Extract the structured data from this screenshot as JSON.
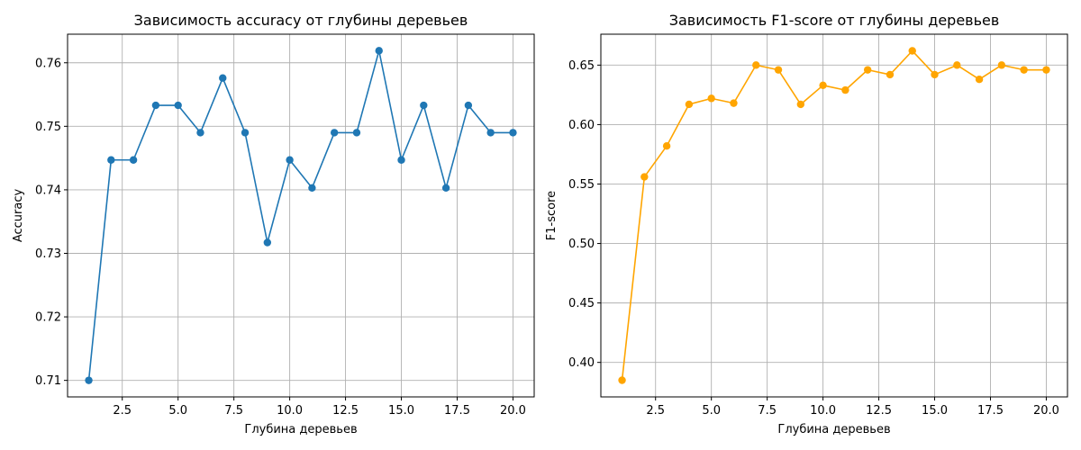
{
  "chart_data": [
    {
      "type": "line",
      "title": "Зависимость accuracy от глубины деревьев",
      "xlabel": "Глубина деревьев",
      "ylabel": "Accuracy",
      "xlim": [
        0.05,
        20.95
      ],
      "ylim": [
        0.7074,
        0.7645
      ],
      "grid": true,
      "x": [
        1,
        2,
        3,
        4,
        5,
        6,
        7,
        8,
        9,
        10,
        11,
        12,
        13,
        14,
        15,
        16,
        17,
        18,
        19,
        20
      ],
      "xticks": [
        2.5,
        5.0,
        7.5,
        10.0,
        12.5,
        15.0,
        17.5,
        20.0
      ],
      "xtick_labels": [
        "2.5",
        "5.0",
        "7.5",
        "10.0",
        "12.5",
        "15.0",
        "17.5",
        "20.0"
      ],
      "yticks": [
        0.71,
        0.72,
        0.73,
        0.74,
        0.75,
        0.76
      ],
      "ytick_labels": [
        "0.71",
        "0.72",
        "0.73",
        "0.74",
        "0.75",
        "0.76"
      ],
      "series": [
        {
          "color": "#1f77b4",
          "marker": "circle",
          "values": [
            0.71,
            0.7447,
            0.7447,
            0.7533,
            0.7533,
            0.749,
            0.7576,
            0.749,
            0.7317,
            0.7447,
            0.7403,
            0.749,
            0.749,
            0.7619,
            0.7447,
            0.7533,
            0.7403,
            0.7533,
            0.749,
            0.749
          ]
        }
      ]
    },
    {
      "type": "line",
      "title": "Зависимость F1-score от глубины деревьев",
      "xlabel": "Глубина деревьев",
      "ylabel": "F1-score",
      "xlim": [
        0.05,
        20.95
      ],
      "ylim": [
        0.371,
        0.676
      ],
      "grid": true,
      "x": [
        1,
        2,
        3,
        4,
        5,
        6,
        7,
        8,
        9,
        10,
        11,
        12,
        13,
        14,
        15,
        16,
        17,
        18,
        19,
        20
      ],
      "xticks": [
        2.5,
        5.0,
        7.5,
        10.0,
        12.5,
        15.0,
        17.5,
        20.0
      ],
      "xtick_labels": [
        "2.5",
        "5.0",
        "7.5",
        "10.0",
        "12.5",
        "15.0",
        "17.5",
        "20.0"
      ],
      "yticks": [
        0.4,
        0.45,
        0.5,
        0.55,
        0.6,
        0.65
      ],
      "ytick_labels": [
        "0.40",
        "0.45",
        "0.50",
        "0.55",
        "0.60",
        "0.65"
      ],
      "series": [
        {
          "color": "#ffa500",
          "marker": "circle",
          "values": [
            0.385,
            0.556,
            0.582,
            0.617,
            0.622,
            0.618,
            0.65,
            0.646,
            0.617,
            0.633,
            0.629,
            0.646,
            0.642,
            0.662,
            0.642,
            0.65,
            0.638,
            0.65,
            0.646,
            0.646
          ]
        }
      ]
    }
  ]
}
